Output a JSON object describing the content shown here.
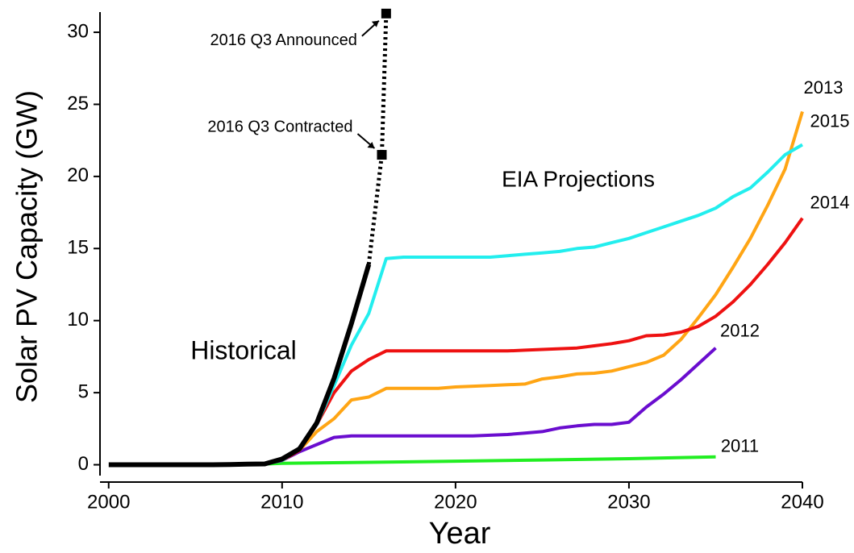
{
  "chart_data": {
    "type": "line",
    "x_label": "Year",
    "y_label": "Solar PV Capacity (GW)",
    "xlim": [
      1999.5,
      2040
    ],
    "ylim": [
      -1.2,
      31.4
    ],
    "xticks": [
      2000,
      2010,
      2020,
      2030,
      2040
    ],
    "yticks": [
      0,
      5,
      10,
      15,
      20,
      25,
      30
    ],
    "annotation": "EIA Projections",
    "series": [
      {
        "name": "2011",
        "color": "#22ee22",
        "x": [
          2009,
          2010,
          2015,
          2020,
          2025,
          2030,
          2035
        ],
        "values": [
          0.05,
          0.1,
          0.17,
          0.25,
          0.33,
          0.42,
          0.55
        ]
      },
      {
        "name": "2012",
        "color": "#6a0dcf",
        "x": [
          2009,
          2010,
          2011,
          2012,
          2013,
          2014,
          2015,
          2016,
          2017,
          2018,
          2019,
          2020,
          2021,
          2022,
          2023,
          2024,
          2025,
          2026,
          2027,
          2028,
          2029,
          2030,
          2031,
          2032,
          2033,
          2034,
          2035
        ],
        "values": [
          0.05,
          0.3,
          0.9,
          1.4,
          1.9,
          2.0,
          2.0,
          2.0,
          2.0,
          2.0,
          2.0,
          2.0,
          2.0,
          2.05,
          2.1,
          2.2,
          2.3,
          2.55,
          2.7,
          2.8,
          2.8,
          2.95,
          4.0,
          4.9,
          5.9,
          7.0,
          8.1
        ]
      },
      {
        "name": "2013",
        "color": "#ffa514",
        "x": [
          2010,
          2011,
          2012,
          2013,
          2014,
          2015,
          2016,
          2017,
          2018,
          2019,
          2020,
          2021,
          2022,
          2023,
          2024,
          2025,
          2026,
          2027,
          2028,
          2029,
          2030,
          2031,
          2032,
          2033,
          2034,
          2035,
          2036,
          2037,
          2038,
          2039,
          2040
        ],
        "values": [
          0.3,
          1.0,
          2.3,
          3.2,
          4.5,
          4.7,
          5.3,
          5.3,
          5.3,
          5.3,
          5.4,
          5.45,
          5.5,
          5.55,
          5.6,
          5.95,
          6.1,
          6.3,
          6.35,
          6.5,
          6.8,
          7.1,
          7.6,
          8.7,
          10.2,
          11.8,
          13.7,
          15.7,
          18.0,
          20.5,
          24.5
        ]
      },
      {
        "name": "2014",
        "color": "#ee1111",
        "x": [
          2010,
          2011,
          2012,
          2013,
          2014,
          2015,
          2016,
          2017,
          2018,
          2019,
          2020,
          2021,
          2022,
          2023,
          2024,
          2025,
          2026,
          2027,
          2028,
          2029,
          2030,
          2031,
          2032,
          2033,
          2034,
          2035,
          2036,
          2037,
          2038,
          2039,
          2040
        ],
        "values": [
          0.3,
          1.0,
          2.8,
          5.0,
          6.5,
          7.3,
          7.9,
          7.9,
          7.9,
          7.9,
          7.9,
          7.9,
          7.9,
          7.9,
          7.95,
          8.0,
          8.05,
          8.1,
          8.25,
          8.4,
          8.6,
          8.95,
          9.0,
          9.2,
          9.6,
          10.3,
          11.3,
          12.5,
          13.9,
          15.4,
          17.1
        ]
      },
      {
        "name": "2015",
        "color": "#22eeee",
        "x": [
          2010,
          2011,
          2012,
          2013,
          2014,
          2015,
          2016,
          2017,
          2018,
          2019,
          2020,
          2021,
          2022,
          2023,
          2024,
          2025,
          2026,
          2027,
          2028,
          2029,
          2030,
          2031,
          2032,
          2033,
          2034,
          2035,
          2036,
          2037,
          2038,
          2039,
          2040
        ],
        "values": [
          0.3,
          1.1,
          2.8,
          5.5,
          8.3,
          10.5,
          14.3,
          14.4,
          14.4,
          14.4,
          14.4,
          14.4,
          14.4,
          14.5,
          14.6,
          14.7,
          14.8,
          15.0,
          15.1,
          15.4,
          15.7,
          16.1,
          16.5,
          16.9,
          17.3,
          17.8,
          18.6,
          19.2,
          20.3,
          21.5,
          22.2
        ]
      },
      {
        "name": "Historical",
        "color": "#000000",
        "x": [
          2000,
          2001,
          2002,
          2003,
          2004,
          2005,
          2006,
          2007,
          2008,
          2009,
          2010,
          2011,
          2012,
          2013,
          2014,
          2015
        ],
        "values": [
          0,
          0,
          0,
          0,
          0,
          0,
          0,
          0.02,
          0.04,
          0.06,
          0.4,
          1.1,
          2.9,
          6.0,
          9.8,
          13.9
        ]
      }
    ],
    "extension": {
      "color": "#000000",
      "style": "dotted",
      "x": [
        2015,
        2015.75,
        2016
      ],
      "values": [
        13.9,
        21.5,
        31.3
      ],
      "point_labels": [
        null,
        "2016 Q3 Contracted",
        "2016 Q3 Announced"
      ]
    }
  }
}
